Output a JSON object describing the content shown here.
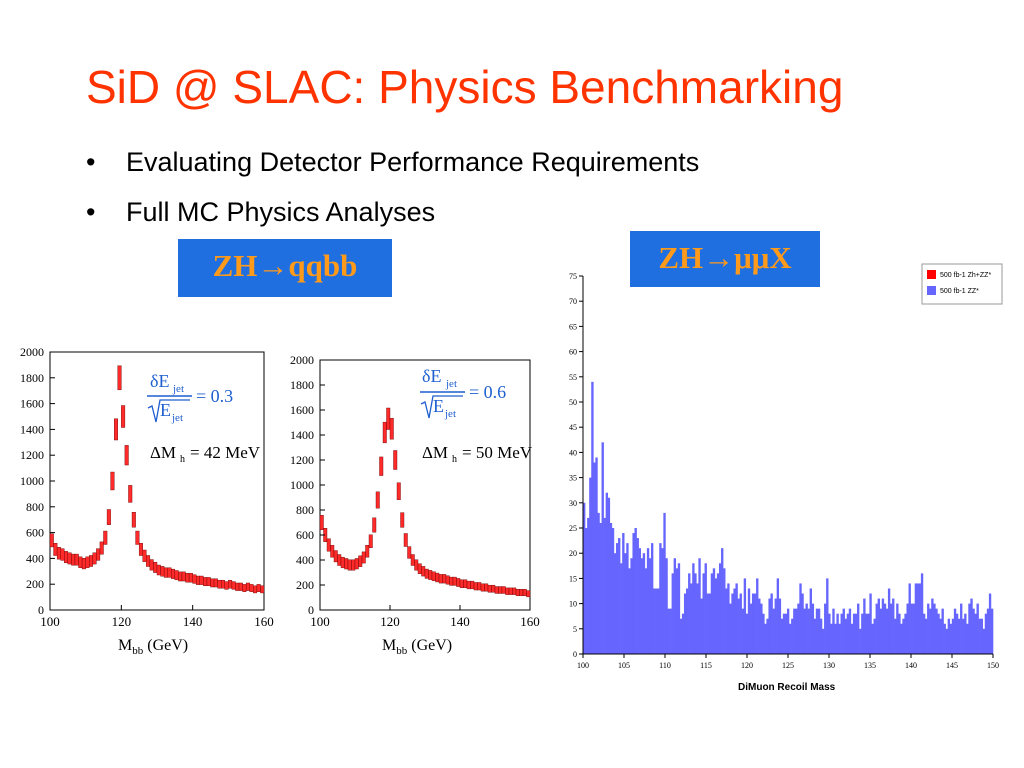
{
  "slide": {
    "title": "SiD @ SLAC: Physics Benchmarking",
    "bullets": [
      {
        "marker": "•",
        "text": "Evaluating Detector Performance Requirements"
      },
      {
        "marker": "•",
        "text": "Full MC Physics Analyses"
      }
    ],
    "tag_left": "ZH→qqbb",
    "tag_right": "ZH→μμX",
    "colors": {
      "title": "#ff3300",
      "tag_bg": "#1f6fe0",
      "tag_text": "#ff9a1a"
    }
  },
  "chart_data": [
    {
      "type": "bar",
      "xlabel": "M",
      "xlabel_sub": "bb",
      "xlabel_unit": "(GeV)",
      "xlim": [
        100,
        160
      ],
      "ylim": [
        0,
        2000
      ],
      "xticks": [
        "100",
        "120",
        "140",
        "160"
      ],
      "yticks": [
        "0",
        "200",
        "400",
        "600",
        "800",
        "1000",
        "1200",
        "1400",
        "1600",
        "1800",
        "2000"
      ],
      "annotation_ratio": "δE",
      "annotation_sub": "jet",
      "annotation_den": "E",
      "annotation_value": "= 0.3",
      "annotation_mass": "ΔM",
      "annotation_mass_sub": "h",
      "annotation_mass_value": "= 42 MeV",
      "x": [
        101,
        102,
        103,
        104,
        105,
        106,
        107,
        108,
        109,
        110,
        111,
        112,
        113,
        114,
        115,
        116,
        117,
        118,
        119,
        120,
        121,
        122,
        123,
        124,
        125,
        126,
        127,
        128,
        129,
        130,
        131,
        132,
        133,
        134,
        135,
        136,
        137,
        138,
        139,
        140,
        141,
        142,
        143,
        144,
        145,
        146,
        147,
        148,
        149,
        150,
        151,
        152,
        153,
        154,
        155,
        156,
        157,
        158,
        159,
        160
      ],
      "values": [
        540,
        470,
        440,
        430,
        410,
        400,
        390,
        390,
        370,
        360,
        370,
        380,
        400,
        430,
        480,
        560,
        720,
        1000,
        1400,
        1800,
        1500,
        1200,
        900,
        700,
        560,
        470,
        420,
        380,
        350,
        330,
        310,
        300,
        290,
        290,
        280,
        270,
        260,
        260,
        250,
        250,
        240,
        230,
        230,
        220,
        220,
        210,
        210,
        200,
        200,
        190,
        200,
        190,
        180,
        180,
        170,
        180,
        170,
        160,
        170,
        160
      ],
      "color": "#ff2a2a"
    },
    {
      "type": "bar",
      "xlabel": "M",
      "xlabel_sub": "bb",
      "xlabel_unit": "(GeV)",
      "xlim": [
        100,
        160
      ],
      "ylim": [
        0,
        2000
      ],
      "xticks": [
        "100",
        "120",
        "140",
        "160"
      ],
      "yticks": [
        "0",
        "200",
        "400",
        "600",
        "800",
        "1000",
        "1200",
        "1400",
        "1600",
        "1800",
        "2000"
      ],
      "annotation_ratio": "δE",
      "annotation_sub": "jet",
      "annotation_den": "E",
      "annotation_value": "= 0.6",
      "annotation_mass": "ΔM",
      "annotation_mass_sub": "h",
      "annotation_mass_value": "= 50 MeV",
      "x": [
        101,
        102,
        103,
        104,
        105,
        106,
        107,
        108,
        109,
        110,
        111,
        112,
        113,
        114,
        115,
        116,
        117,
        118,
        119,
        120,
        121,
        122,
        123,
        124,
        125,
        126,
        127,
        128,
        129,
        130,
        131,
        132,
        133,
        134,
        135,
        136,
        137,
        138,
        139,
        140,
        141,
        142,
        143,
        144,
        145,
        146,
        147,
        148,
        149,
        150,
        151,
        152,
        153,
        154,
        155,
        156,
        157,
        158,
        159,
        160
      ],
      "values": [
        700,
        600,
        520,
        470,
        430,
        400,
        380,
        370,
        360,
        360,
        370,
        390,
        420,
        470,
        550,
        680,
        880,
        1150,
        1420,
        1530,
        1450,
        1200,
        950,
        720,
        560,
        460,
        400,
        360,
        330,
        310,
        290,
        280,
        270,
        260,
        250,
        250,
        240,
        230,
        230,
        220,
        210,
        210,
        200,
        200,
        190,
        190,
        180,
        180,
        170,
        170,
        160,
        160,
        160,
        150,
        150,
        150,
        140,
        140,
        140,
        130
      ],
      "color": "#ff2a2a"
    },
    {
      "type": "bar",
      "stacked": true,
      "xlabel": "DiMuon Recoil Mass",
      "xlim": [
        100,
        150
      ],
      "ylim": [
        0,
        75
      ],
      "xticks": [
        "100",
        "105",
        "110",
        "115",
        "120",
        "125",
        "130",
        "135",
        "140",
        "145",
        "150"
      ],
      "yticks": [
        "0",
        "5",
        "10",
        "15",
        "20",
        "25",
        "30",
        "35",
        "40",
        "45",
        "50",
        "55",
        "60",
        "65",
        "70",
        "75"
      ],
      "legend_position": "top-right",
      "series": [
        {
          "name": "500 fb-1 ZZ*",
          "color": "#6666ff",
          "values": [
            30,
            25,
            27,
            35,
            54,
            38,
            39,
            28,
            26,
            42,
            27,
            32,
            31,
            26,
            25,
            20,
            22,
            23,
            18,
            24,
            20,
            22,
            17,
            19,
            24,
            25,
            23,
            21,
            19,
            20,
            17,
            21,
            19,
            22,
            13,
            13,
            13,
            22,
            21,
            28,
            19,
            9,
            9,
            16,
            19,
            17,
            18,
            7,
            8,
            12,
            13,
            16,
            14,
            18,
            16,
            14,
            19,
            11,
            16,
            18,
            12,
            12,
            16,
            17,
            15,
            16,
            18,
            21,
            17,
            13,
            14,
            10,
            12,
            13,
            14,
            11,
            12,
            9,
            15,
            8,
            13,
            10,
            12,
            12,
            15,
            11,
            10,
            8,
            6,
            7,
            11,
            12,
            9,
            11,
            15,
            11,
            7,
            8,
            8,
            9,
            6,
            7,
            9,
            9,
            10,
            14,
            12,
            9,
            10,
            9,
            13,
            10,
            7,
            9,
            9,
            7,
            5,
            10,
            15,
            8,
            6,
            9,
            6,
            8,
            6,
            8,
            9,
            7,
            8,
            9,
            6,
            8,
            8,
            10,
            5,
            8,
            11,
            8,
            8,
            12,
            6,
            7,
            10,
            11,
            9,
            11,
            10,
            9,
            13,
            10,
            11,
            7,
            10,
            8,
            6,
            7,
            8,
            10,
            14,
            10,
            10,
            14,
            14,
            14,
            16,
            8,
            7,
            10,
            9,
            11,
            10,
            9,
            8,
            7,
            9,
            6,
            5,
            7,
            6,
            7,
            9,
            8,
            7,
            10,
            7,
            8,
            6,
            10,
            11,
            9,
            8,
            10,
            7,
            7,
            5,
            8,
            9,
            12,
            9
          ]
        },
        {
          "name": "500 fb-1 Zh+ZZ*",
          "color": "#ff0000",
          "values": [
            0,
            0,
            0,
            0,
            0,
            0,
            0,
            0,
            0,
            0,
            0,
            0,
            0,
            0,
            0,
            0,
            0,
            0,
            0,
            0,
            0,
            0,
            0,
            0,
            0,
            0,
            0,
            0,
            0,
            0,
            0,
            0,
            0,
            0,
            0,
            0,
            0,
            0,
            0,
            0,
            0,
            0,
            0,
            0,
            0,
            0,
            0,
            0,
            0,
            0,
            0,
            0,
            0,
            0,
            0,
            0,
            0,
            0,
            0,
            0,
            0,
            0,
            0,
            0,
            0,
            0,
            0,
            0,
            0,
            0,
            0,
            0,
            0,
            0,
            0,
            0,
            0,
            0,
            0,
            0,
            0,
            0,
            0,
            0,
            0,
            0,
            0,
            0,
            0,
            0,
            0,
            0,
            0,
            0,
            0,
            0,
            0,
            0,
            0,
            0,
            0,
            0,
            0,
            0,
            0,
            0,
            0,
            0,
            0,
            0,
            0,
            0,
            0,
            0,
            0,
            0,
            0,
            0,
            0,
            0,
            0,
            0,
            0,
            0,
            0,
            0,
            0,
            0,
            0,
            0,
            0,
            0,
            0,
            0,
            0,
            0,
            0,
            0,
            0,
            0,
            0,
            0,
            0,
            0,
            0,
            0,
            0,
            0,
            0,
            0,
            0,
            0,
            0,
            0,
            0,
            0,
            0,
            0,
            0,
            0,
            0,
            0,
            0,
            0,
            0,
            0,
            0,
            0,
            0,
            0,
            0,
            0,
            0,
            0,
            0,
            0,
            0,
            0,
            0,
            0,
            0,
            0,
            0,
            0,
            0,
            0,
            0,
            0,
            0,
            0,
            0,
            0,
            0,
            0,
            0,
            0,
            0,
            0,
            0,
            0
          ]
        }
      ]
    }
  ]
}
